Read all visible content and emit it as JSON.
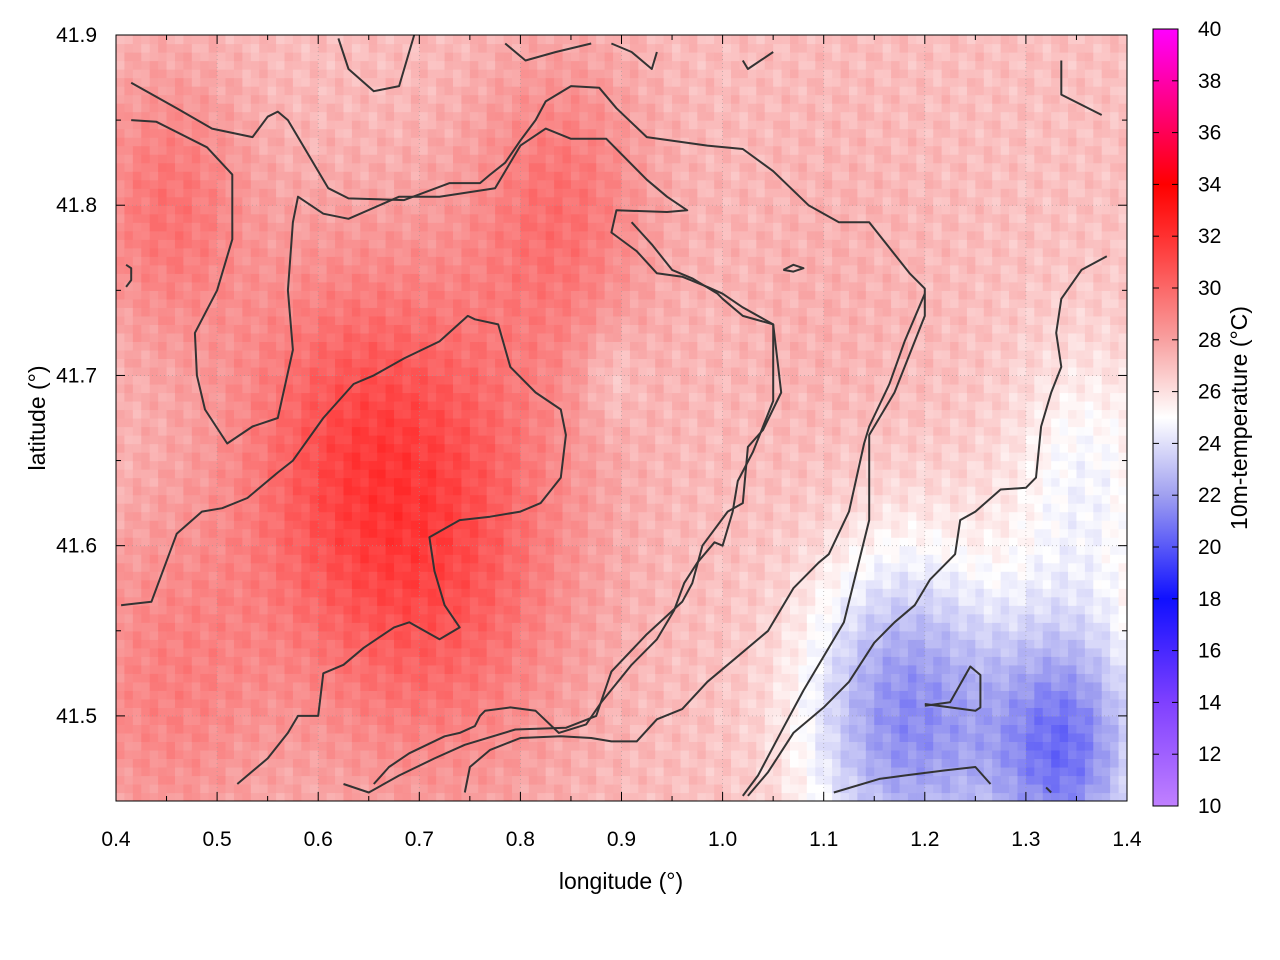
{
  "chart_data": {
    "type": "heatmap",
    "title": "",
    "xlabel": "longitude (°)",
    "ylabel": "latitude (°)",
    "colorbar_label": "10m-temperature (°C)",
    "xlim": [
      0.4,
      1.4
    ],
    "ylim": [
      41.45,
      41.9
    ],
    "x_ticks": [
      0.4,
      0.5,
      0.6,
      0.7,
      0.8,
      0.9,
      1.0,
      1.1,
      1.2,
      1.3,
      1.4
    ],
    "x_tick_labels": [
      "0.4",
      "0.5",
      "0.6",
      "0.7",
      "0.8",
      "0.9",
      "1.0",
      "1.1",
      "1.2",
      "1.3",
      "1.4"
    ],
    "y_ticks": [
      41.5,
      41.6,
      41.7,
      41.8,
      41.9
    ],
    "y_tick_labels": [
      "41.5",
      "41.6",
      "41.7",
      "41.8",
      "41.9"
    ],
    "colorbar_range": [
      10,
      40
    ],
    "colorbar_ticks": [
      10,
      12,
      14,
      16,
      18,
      20,
      22,
      24,
      26,
      28,
      30,
      32,
      34,
      36,
      38,
      40
    ],
    "colorbar_tick_labels": [
      "10",
      "12",
      "14",
      "16",
      "18",
      "20",
      "22",
      "24",
      "26",
      "28",
      "30",
      "32",
      "34",
      "36",
      "38",
      "40"
    ],
    "colormap": [
      [
        10,
        "#c080ff"
      ],
      [
        14,
        "#7f40ff"
      ],
      [
        18,
        "#1010ff"
      ],
      [
        22,
        "#a0a0f0"
      ],
      [
        25,
        "#ffffff"
      ],
      [
        28,
        "#f8a0a0"
      ],
      [
        32,
        "#ff3030"
      ],
      [
        34,
        "#ff0000"
      ],
      [
        37,
        "#ff0080"
      ],
      [
        40,
        "#ff00ff"
      ]
    ],
    "grid": true,
    "grid_style": "dotted",
    "contour_color": "#333333",
    "field_centers": [
      {
        "x": 0.72,
        "y": 41.6,
        "value": 30.5,
        "spread": 0.14
      },
      {
        "x": 0.62,
        "y": 41.66,
        "value": 29.5,
        "spread": 0.12
      },
      {
        "x": 0.45,
        "y": 41.52,
        "value": 29.0,
        "spread": 0.1
      },
      {
        "x": 0.84,
        "y": 41.8,
        "value": 29.5,
        "spread": 0.09
      },
      {
        "x": 0.45,
        "y": 41.8,
        "value": 29.5,
        "spread": 0.08
      },
      {
        "x": 1.18,
        "y": 41.5,
        "value": 21.5,
        "spread": 0.1
      },
      {
        "x": 1.34,
        "y": 41.48,
        "value": 21.0,
        "spread": 0.08
      },
      {
        "x": 1.36,
        "y": 41.64,
        "value": 24.8,
        "spread": 0.08
      },
      {
        "x": 0.89,
        "y": 41.7,
        "value": 26.0,
        "spread": 0.03
      },
      {
        "x": 1.1,
        "y": 41.75,
        "value": 27.5,
        "spread": 0.12
      }
    ],
    "contours": [
      [
        [
          0.415,
          41.872
        ],
        [
          0.46,
          41.857
        ],
        [
          0.495,
          41.845
        ],
        [
          0.535,
          41.84
        ],
        [
          0.55,
          41.852
        ],
        [
          0.56,
          41.855
        ],
        [
          0.57,
          41.85
        ],
        [
          0.61,
          41.81
        ],
        [
          0.63,
          41.804
        ],
        [
          0.685,
          41.803
        ],
        [
          0.73,
          41.813
        ],
        [
          0.76,
          41.813
        ],
        [
          0.77,
          41.818
        ],
        [
          0.785,
          41.825
        ],
        [
          0.8,
          41.838
        ],
        [
          0.815,
          41.85
        ],
        [
          0.825,
          41.861
        ],
        [
          0.85,
          41.87
        ],
        [
          0.878,
          41.869
        ],
        [
          0.895,
          41.857
        ],
        [
          0.925,
          41.84
        ],
        [
          0.985,
          41.835
        ],
        [
          1.02,
          41.833
        ],
        [
          1.05,
          41.82
        ],
        [
          1.085,
          41.8
        ],
        [
          1.115,
          41.79
        ],
        [
          1.145,
          41.79
        ],
        [
          1.185,
          41.76
        ],
        [
          1.2,
          41.751
        ],
        [
          1.2,
          41.735
        ],
        [
          1.17,
          41.69
        ],
        [
          1.145,
          41.665
        ],
        [
          1.145,
          41.615
        ],
        [
          1.12,
          41.555
        ],
        [
          1.08,
          41.515
        ],
        [
          1.06,
          41.493
        ],
        [
          1.035,
          41.465
        ],
        [
          1.02,
          41.453
        ]
      ],
      [
        [
          0.415,
          41.85
        ],
        [
          0.44,
          41.849
        ],
        [
          0.49,
          41.834
        ],
        [
          0.515,
          41.818
        ],
        [
          0.515,
          41.78
        ],
        [
          0.5,
          41.75
        ],
        [
          0.478,
          41.725
        ],
        [
          0.48,
          41.7
        ],
        [
          0.488,
          41.68
        ],
        [
          0.51,
          41.66
        ],
        [
          0.535,
          41.67
        ],
        [
          0.56,
          41.675
        ],
        [
          0.575,
          41.715
        ],
        [
          0.57,
          41.75
        ],
        [
          0.575,
          41.79
        ],
        [
          0.58,
          41.805
        ],
        [
          0.605,
          41.795
        ],
        [
          0.63,
          41.792
        ],
        [
          0.68,
          41.805
        ],
        [
          0.72,
          41.805
        ],
        [
          0.775,
          41.81
        ],
        [
          0.8,
          41.835
        ],
        [
          0.825,
          41.845
        ],
        [
          0.85,
          41.839
        ],
        [
          0.885,
          41.839
        ],
        [
          0.925,
          41.815
        ],
        [
          0.945,
          41.805
        ],
        [
          0.965,
          41.797
        ],
        [
          0.945,
          41.796
        ],
        [
          0.895,
          41.797
        ],
        [
          0.89,
          41.784
        ],
        [
          0.915,
          41.773
        ],
        [
          0.935,
          41.76
        ],
        [
          0.96,
          41.758
        ],
        [
          0.985,
          41.752
        ],
        [
          1.0,
          41.748
        ],
        [
          1.02,
          41.74
        ],
        [
          1.05,
          41.73
        ],
        [
          1.055,
          41.705
        ],
        [
          1.058,
          41.69
        ],
        [
          1.04,
          41.668
        ],
        [
          1.025,
          41.658
        ],
        [
          1.02,
          41.625
        ],
        [
          1.005,
          41.62
        ],
        [
          0.98,
          41.6
        ],
        [
          0.97,
          41.578
        ],
        [
          0.96,
          41.567
        ],
        [
          0.925,
          41.548
        ],
        [
          0.89,
          41.526
        ],
        [
          0.875,
          41.5
        ],
        [
          0.845,
          41.493
        ],
        [
          0.795,
          41.492
        ],
        [
          0.745,
          41.483
        ],
        [
          0.715,
          41.475
        ],
        [
          0.68,
          41.465
        ],
        [
          0.65,
          41.455
        ],
        [
          0.625,
          41.46
        ]
      ],
      [
        [
          0.405,
          41.565
        ],
        [
          0.435,
          41.567
        ],
        [
          0.46,
          41.607
        ],
        [
          0.485,
          41.62
        ],
        [
          0.505,
          41.622
        ],
        [
          0.53,
          41.628
        ],
        [
          0.56,
          41.643
        ],
        [
          0.575,
          41.65
        ],
        [
          0.605,
          41.675
        ],
        [
          0.635,
          41.695
        ],
        [
          0.655,
          41.7
        ],
        [
          0.685,
          41.71
        ],
        [
          0.72,
          41.72
        ],
        [
          0.748,
          41.735
        ],
        [
          0.755,
          41.733
        ],
        [
          0.778,
          41.73
        ],
        [
          0.79,
          41.705
        ],
        [
          0.815,
          41.69
        ],
        [
          0.84,
          41.68
        ],
        [
          0.845,
          41.665
        ],
        [
          0.84,
          41.64
        ],
        [
          0.82,
          41.625
        ],
        [
          0.8,
          41.62
        ],
        [
          0.77,
          41.617
        ],
        [
          0.74,
          41.615
        ],
        [
          0.71,
          41.605
        ],
        [
          0.715,
          41.585
        ],
        [
          0.725,
          41.565
        ],
        [
          0.74,
          41.552
        ],
        [
          0.72,
          41.545
        ],
        [
          0.69,
          41.555
        ],
        [
          0.675,
          41.552
        ],
        [
          0.665,
          41.548
        ],
        [
          0.645,
          41.54
        ],
        [
          0.625,
          41.53
        ],
        [
          0.605,
          41.525
        ],
        [
          0.6,
          41.5
        ],
        [
          0.58,
          41.5
        ],
        [
          0.57,
          41.49
        ],
        [
          0.55,
          41.475
        ],
        [
          0.52,
          41.46
        ]
      ],
      [
        [
          0.655,
          41.46
        ],
        [
          0.67,
          41.47
        ],
        [
          0.69,
          41.478
        ],
        [
          0.725,
          41.488
        ],
        [
          0.74,
          41.49
        ],
        [
          0.755,
          41.494
        ],
        [
          0.76,
          41.5
        ],
        [
          0.765,
          41.503
        ],
        [
          0.79,
          41.505
        ],
        [
          0.815,
          41.503
        ],
        [
          0.838,
          41.49
        ],
        [
          0.865,
          41.495
        ],
        [
          0.88,
          41.508
        ],
        [
          0.91,
          41.53
        ],
        [
          0.935,
          41.545
        ],
        [
          0.952,
          41.562
        ],
        [
          0.962,
          41.578
        ],
        [
          0.975,
          41.59
        ],
        [
          0.992,
          41.602
        ],
        [
          1.0,
          41.6
        ],
        [
          1.01,
          41.62
        ],
        [
          1.015,
          41.638
        ],
        [
          1.03,
          41.655
        ],
        [
          1.05,
          41.685
        ],
        [
          1.05,
          41.73
        ],
        [
          1.02,
          41.735
        ],
        [
          1.0,
          41.745
        ],
        [
          0.995,
          41.748
        ],
        [
          0.97,
          41.757
        ],
        [
          0.95,
          41.762
        ],
        [
          0.93,
          41.777
        ],
        [
          0.91,
          41.79
        ]
      ],
      [
        [
          0.745,
          41.455
        ],
        [
          0.75,
          41.47
        ],
        [
          0.77,
          41.48
        ],
        [
          0.8,
          41.487
        ],
        [
          0.84,
          41.488
        ],
        [
          0.87,
          41.487
        ],
        [
          0.89,
          41.485
        ],
        [
          0.915,
          41.485
        ],
        [
          0.935,
          41.498
        ],
        [
          0.96,
          41.504
        ],
        [
          0.985,
          41.52
        ],
        [
          1.015,
          41.535
        ],
        [
          1.045,
          41.55
        ],
        [
          1.07,
          41.575
        ],
        [
          1.095,
          41.59
        ],
        [
          1.105,
          41.595
        ],
        [
          1.125,
          41.62
        ],
        [
          1.14,
          41.66
        ],
        [
          1.145,
          41.67
        ],
        [
          1.165,
          41.695
        ],
        [
          1.18,
          41.72
        ],
        [
          1.2,
          41.748
        ]
      ],
      [
        [
          1.11,
          41.455
        ],
        [
          1.155,
          41.463
        ],
        [
          1.18,
          41.465
        ],
        [
          1.22,
          41.468
        ],
        [
          1.25,
          41.47
        ],
        [
          1.265,
          41.46
        ]
      ],
      [
        [
          1.2,
          41.506
        ],
        [
          1.225,
          41.508
        ],
        [
          1.245,
          41.529
        ],
        [
          1.255,
          41.524
        ],
        [
          1.255,
          41.505
        ],
        [
          1.25,
          41.503
        ],
        [
          1.2,
          41.507
        ]
      ],
      [
        [
          1.06,
          41.762
        ],
        [
          1.07,
          41.765
        ],
        [
          1.08,
          41.763
        ],
        [
          1.07,
          41.761
        ],
        [
          1.06,
          41.762
        ]
      ],
      [
        [
          0.41,
          41.765
        ],
        [
          0.415,
          41.763
        ],
        [
          0.415,
          41.756
        ],
        [
          0.41,
          41.752
        ]
      ],
      [
        [
          0.62,
          41.898
        ],
        [
          0.63,
          41.88
        ],
        [
          0.655,
          41.867
        ],
        [
          0.68,
          41.87
        ],
        [
          0.695,
          41.9
        ]
      ],
      [
        [
          0.785,
          41.895
        ],
        [
          0.805,
          41.885
        ],
        [
          0.835,
          41.89
        ],
        [
          0.87,
          41.895
        ]
      ],
      [
        [
          0.89,
          41.895
        ],
        [
          0.91,
          41.89
        ],
        [
          0.93,
          41.88
        ],
        [
          0.935,
          41.89
        ]
      ],
      [
        [
          1.02,
          41.885
        ],
        [
          1.025,
          41.88
        ],
        [
          1.05,
          41.89
        ]
      ],
      [
        [
          1.335,
          41.885
        ],
        [
          1.335,
          41.865
        ],
        [
          1.375,
          41.853
        ]
      ],
      [
        [
          1.32,
          41.458
        ],
        [
          1.325,
          41.455
        ]
      ],
      [
        [
          1.38,
          41.77
        ],
        [
          1.355,
          41.762
        ],
        [
          1.335,
          41.745
        ],
        [
          1.33,
          41.725
        ],
        [
          1.335,
          41.705
        ],
        [
          1.325,
          41.69
        ],
        [
          1.315,
          41.67
        ],
        [
          1.31,
          41.64
        ],
        [
          1.3,
          41.634
        ],
        [
          1.275,
          41.633
        ],
        [
          1.25,
          41.62
        ],
        [
          1.235,
          41.615
        ],
        [
          1.23,
          41.595
        ],
        [
          1.205,
          41.58
        ],
        [
          1.19,
          41.565
        ],
        [
          1.17,
          41.555
        ],
        [
          1.15,
          41.543
        ],
        [
          1.125,
          41.52
        ],
        [
          1.1,
          41.505
        ],
        [
          1.07,
          41.49
        ],
        [
          1.045,
          41.467
        ],
        [
          1.025,
          41.453
        ]
      ]
    ]
  }
}
